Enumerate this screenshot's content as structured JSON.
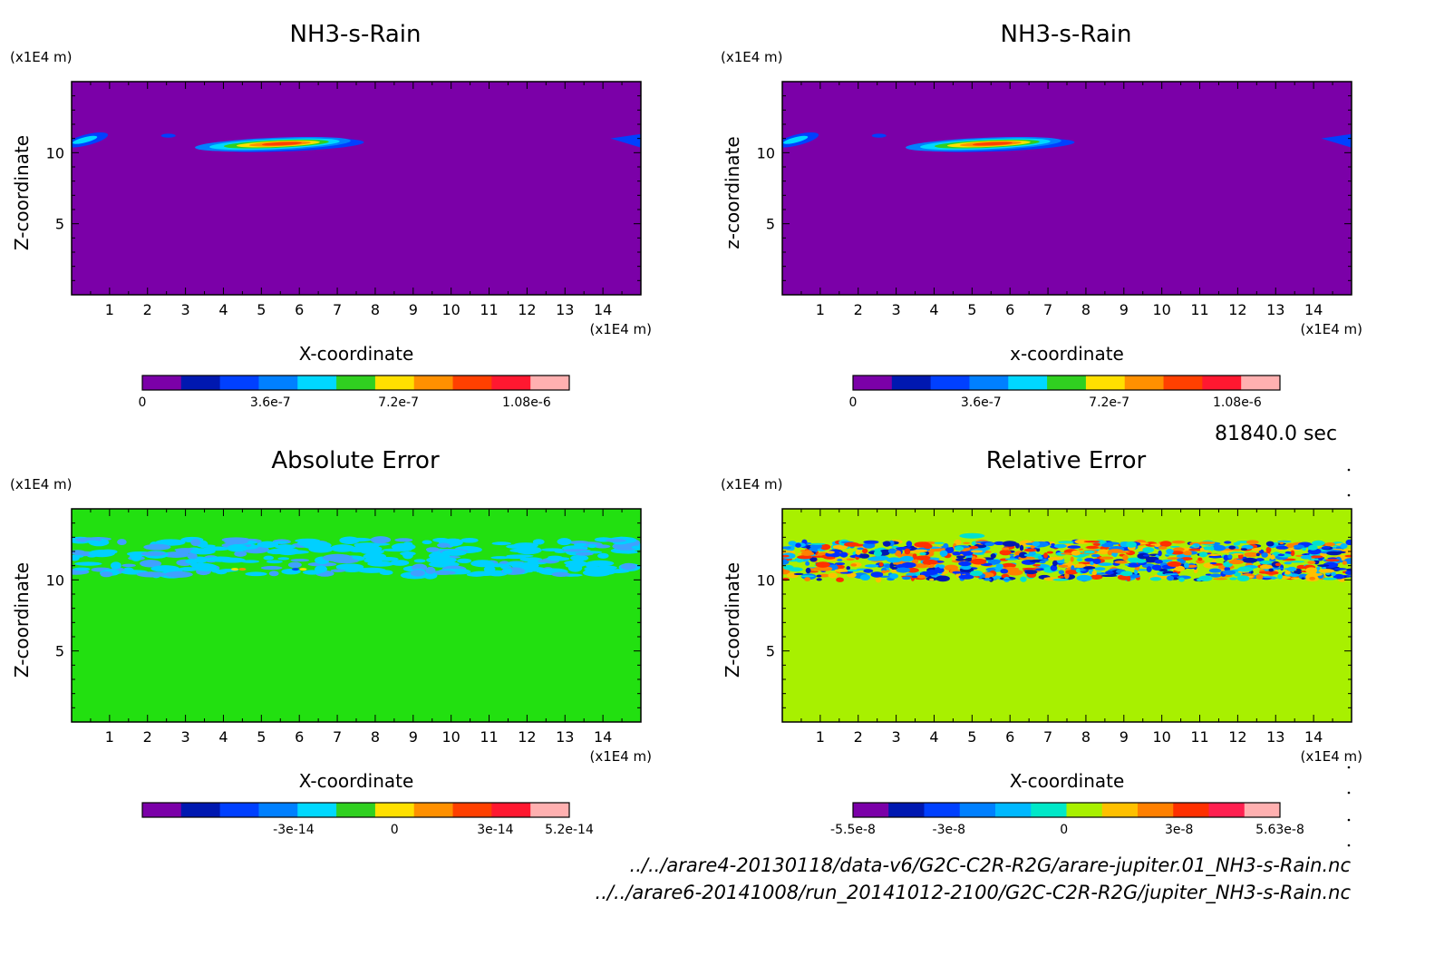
{
  "chart_data": [
    {
      "type": "heatmap",
      "title": "NH3-s-Rain",
      "xlabel": "X-coordinate",
      "ylabel": "Z-coordinate",
      "x_unit": "(x1E4 m)",
      "y_unit": "(x1E4 m)",
      "xlim": [
        0,
        15
      ],
      "ylim": [
        0,
        15
      ],
      "x_ticks": [
        "1",
        "2",
        "3",
        "4",
        "5",
        "6",
        "7",
        "8",
        "9",
        "10",
        "11",
        "12",
        "13",
        "14"
      ],
      "y_ticks": [
        "5",
        "10"
      ],
      "background": "#7b00a8",
      "features": [
        {
          "kind": "cloud layer",
          "x_range": [
            3.5,
            7.5
          ],
          "z": 10.6,
          "max_value": 1.08e-06
        },
        {
          "kind": "edge patch",
          "x_range": [
            0,
            1.0
          ],
          "z": 10.9
        },
        {
          "kind": "edge patch",
          "x_range": [
            14.2,
            15
          ],
          "z": 10.8
        }
      ],
      "colorbar": {
        "colors": [
          "#7b00a8",
          "#0018b0",
          "#0040ff",
          "#0080ff",
          "#00d8ff",
          "#30d020",
          "#ffe000",
          "#ff9000",
          "#ff4000",
          "#ff1830",
          "#ffb0b0"
        ],
        "tick_labels": [
          "0",
          "3.6e-7",
          "7.2e-7",
          "1.08e-6"
        ],
        "tick_values": [
          0,
          3.6e-07,
          7.2e-07,
          1.08e-06
        ],
        "max": 1.2e-06
      }
    },
    {
      "type": "heatmap",
      "title": "NH3-s-Rain",
      "xlabel": "x-coordinate",
      "ylabel": "z-coordinate",
      "x_unit": "(x1E4 m)",
      "y_unit": "(x1E4 m)",
      "xlim": [
        0,
        15
      ],
      "ylim": [
        0,
        15
      ],
      "x_ticks": [
        "1",
        "2",
        "3",
        "4",
        "5",
        "6",
        "7",
        "8",
        "9",
        "10",
        "11",
        "12",
        "13",
        "14"
      ],
      "y_ticks": [
        "5",
        "10"
      ],
      "background": "#7b00a8",
      "features": [
        {
          "kind": "cloud layer",
          "x_range": [
            3.5,
            7.5
          ],
          "z": 10.6,
          "max_value": 1.08e-06
        },
        {
          "kind": "edge patch",
          "x_range": [
            0,
            1.0
          ],
          "z": 10.9
        },
        {
          "kind": "edge patch",
          "x_range": [
            14.2,
            15
          ],
          "z": 10.8
        }
      ],
      "colorbar": {
        "colors": [
          "#7b00a8",
          "#0018b0",
          "#0040ff",
          "#0080ff",
          "#00d8ff",
          "#30d020",
          "#ffe000",
          "#ff9000",
          "#ff4000",
          "#ff1830",
          "#ffb0b0"
        ],
        "tick_labels": [
          "0",
          "3.6e-7",
          "7.2e-7",
          "1.08e-6"
        ],
        "tick_values": [
          0,
          3.6e-07,
          7.2e-07,
          1.08e-06
        ],
        "max": 1.2e-06
      }
    },
    {
      "type": "heatmap",
      "title": "Absolute Error",
      "xlabel": "X-coordinate",
      "ylabel": "Z-coordinate",
      "x_unit": "(x1E4 m)",
      "y_unit": "(x1E4 m)",
      "xlim": [
        0,
        15
      ],
      "ylim": [
        0,
        15
      ],
      "x_ticks": [
        "1",
        "2",
        "3",
        "4",
        "5",
        "6",
        "7",
        "8",
        "9",
        "10",
        "11",
        "12",
        "13",
        "14"
      ],
      "y_ticks": [
        "5",
        "10"
      ],
      "background": "#22e010",
      "features": [
        {
          "kind": "noise band",
          "z_range": [
            10.0,
            13.0
          ],
          "values": "small negative errors",
          "colors": [
            "#00d0ff",
            "#40a0ff"
          ]
        }
      ],
      "colorbar": {
        "colors": [
          "#7b00a8",
          "#0018b0",
          "#0040ff",
          "#0080ff",
          "#00d8ff",
          "#30d020",
          "#ffe000",
          "#ff9000",
          "#ff4000",
          "#ff1830",
          "#ffb0b0"
        ],
        "tick_labels": [
          "-3e-14",
          "0",
          "3e-14",
          "5.2e-14"
        ],
        "tick_values": [
          -3e-14,
          0,
          3e-14,
          5.2e-14
        ],
        "min": -7.5e-14,
        "max": 5.2e-14
      }
    },
    {
      "type": "heatmap",
      "title": "Relative Error",
      "xlabel": "X-coordinate",
      "ylabel": "Z-coordinate",
      "x_unit": "(x1E4 m)",
      "y_unit": "(x1E4 m)",
      "xlim": [
        0,
        15
      ],
      "ylim": [
        0,
        15
      ],
      "x_ticks": [
        "1",
        "2",
        "3",
        "4",
        "5",
        "6",
        "7",
        "8",
        "9",
        "10",
        "11",
        "12",
        "13",
        "14"
      ],
      "y_ticks": [
        "5",
        "10"
      ],
      "background": "#a8f000",
      "features": [
        {
          "kind": "noise band",
          "z_range": [
            10.0,
            12.5
          ],
          "values": "positive and negative relative errors",
          "colors": [
            "#0030ff",
            "#ff3000",
            "#00e0d0"
          ]
        }
      ],
      "colorbar": {
        "colors": [
          "#7b00a8",
          "#0018b0",
          "#0040ff",
          "#0080ff",
          "#00b8ff",
          "#00e8c8",
          "#a8f000",
          "#ffc000",
          "#ff8000",
          "#ff3000",
          "#ff2050",
          "#ffb0b0"
        ],
        "tick_labels": [
          "-5.5e-8",
          "-3e-8",
          "0",
          "3e-8",
          "5.63e-8"
        ],
        "tick_values": [
          -5.5e-08,
          -3e-08,
          0,
          3e-08,
          5.63e-08
        ],
        "min": -5.5e-08,
        "max": 5.63e-08
      }
    }
  ],
  "time_label": "81840.0 sec",
  "file_paths": [
    "../../arare4-20130118/data-v6/G2C-C2R-R2G/arare-jupiter.01_NH3-s-Rain.nc",
    "../../arare6-20141008/run_20141012-2100/G2C-C2R-R2G/jupiter_NH3-s-Rain.nc"
  ]
}
